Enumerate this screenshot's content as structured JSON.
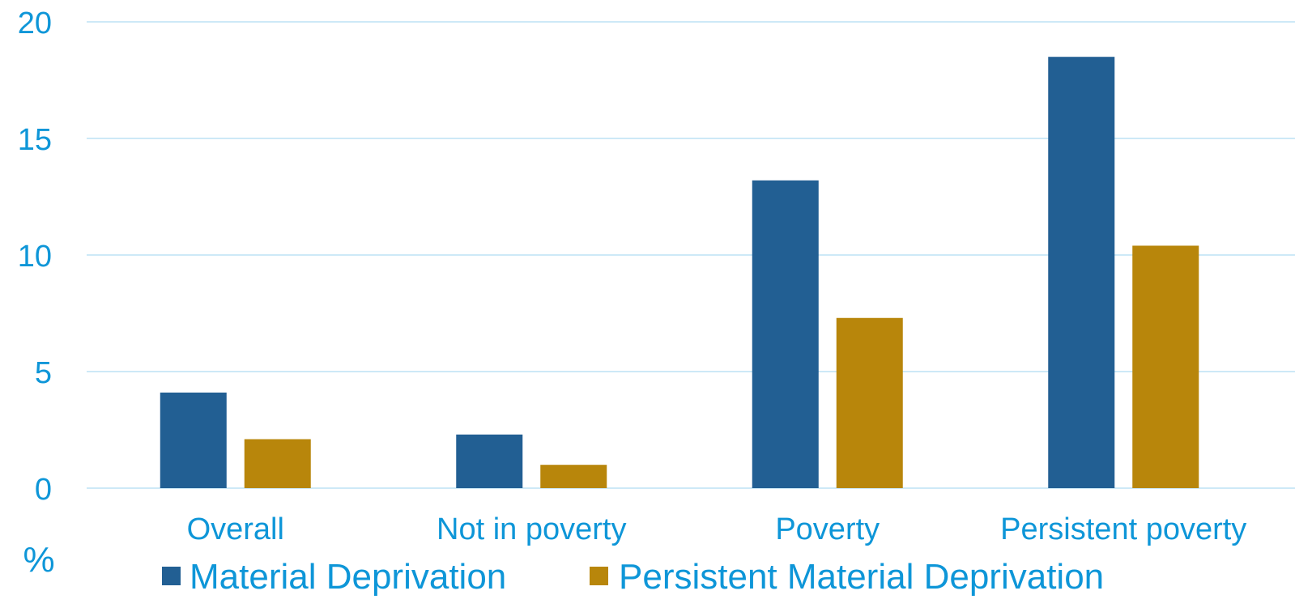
{
  "chart_data": {
    "type": "bar",
    "categories": [
      "Overall",
      "Not in poverty",
      "Poverty",
      "Persistent poverty"
    ],
    "series": [
      {
        "name": "Material Deprivation",
        "values": [
          4.1,
          2.3,
          13.2,
          18.5
        ],
        "color": "#225f93"
      },
      {
        "name": "Persistent Material Deprivation",
        "values": [
          2.1,
          1.0,
          7.3,
          10.4
        ],
        "color": "#b8860b"
      }
    ],
    "ylim": [
      0,
      20
    ],
    "yticks": [
      0,
      5,
      10,
      15,
      20
    ],
    "ylabel": "%",
    "grid": true,
    "legend_position": "bottom",
    "colors": {
      "text": "#0e96d8",
      "grid": "#cde9f7"
    }
  }
}
